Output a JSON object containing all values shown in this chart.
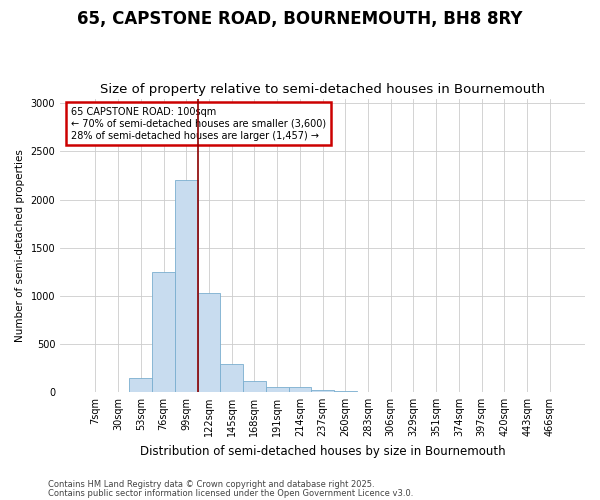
{
  "title": "65, CAPSTONE ROAD, BOURNEMOUTH, BH8 8RY",
  "subtitle": "Size of property relative to semi-detached houses in Bournemouth",
  "xlabel": "Distribution of semi-detached houses by size in Bournemouth",
  "ylabel": "Number of semi-detached properties",
  "categories": [
    "7sqm",
    "30sqm",
    "53sqm",
    "76sqm",
    "99sqm",
    "122sqm",
    "145sqm",
    "168sqm",
    "191sqm",
    "214sqm",
    "237sqm",
    "260sqm",
    "283sqm",
    "306sqm",
    "329sqm",
    "351sqm",
    "374sqm",
    "397sqm",
    "420sqm",
    "443sqm",
    "466sqm"
  ],
  "bar_heights": [
    0,
    0,
    150,
    1250,
    2200,
    1030,
    290,
    110,
    55,
    50,
    25,
    10,
    0,
    0,
    0,
    0,
    0,
    0,
    0,
    0,
    0
  ],
  "bar_color": "#C8DCEF",
  "bar_edge_color": "#7aaecf",
  "vline_x": 4.5,
  "vline_color": "#8B0000",
  "ylim": [
    0,
    3050
  ],
  "yticks": [
    0,
    500,
    1000,
    1500,
    2000,
    2500,
    3000
  ],
  "annotation_text": "65 CAPSTONE ROAD: 100sqm\n← 70% of semi-detached houses are smaller (3,600)\n28% of semi-detached houses are larger (1,457) →",
  "annotation_box_color": "#FFFFFF",
  "annotation_border_color": "#CC0000",
  "footnote1": "Contains HM Land Registry data © Crown copyright and database right 2025.",
  "footnote2": "Contains public sector information licensed under the Open Government Licence v3.0.",
  "bg_color": "#FFFFFF",
  "plot_bg_color": "#FFFFFF",
  "title_fontsize": 12,
  "subtitle_fontsize": 9.5
}
